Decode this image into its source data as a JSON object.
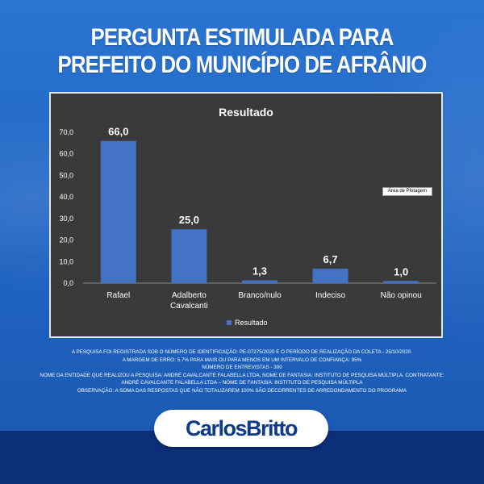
{
  "headline": {
    "line1": "PERGUNTA ESTIMULADA PARA",
    "line2": "PREFEITO DO  MUNICÍPIO DE AFRÂNIO"
  },
  "chart_data": {
    "type": "bar",
    "title": "Resultado",
    "categories": [
      "Rafael",
      "Adalberto Cavalcanti",
      "Branco/nulo",
      "Indeciso",
      "Não opinou"
    ],
    "category_lines": [
      [
        "Rafael"
      ],
      [
        "Adalberto",
        "Cavalcanti"
      ],
      [
        "Branco/nulo"
      ],
      [
        "Indeciso"
      ],
      [
        "Não opinou"
      ]
    ],
    "series": [
      {
        "name": "Resultado",
        "values": [
          66.0,
          25.0,
          1.3,
          6.7,
          1.0
        ]
      }
    ],
    "value_labels": [
      "66,0",
      "25,0",
      "1,3",
      "6,7",
      "1,0"
    ],
    "yticks": [
      "0,0",
      "10,0",
      "20,0",
      "30,0",
      "40,0",
      "50,0",
      "60,0",
      "70,0"
    ],
    "ylim": [
      0,
      70
    ],
    "grid": false,
    "legend_position": "bottom",
    "colors": {
      "bar": "#4472c4",
      "background": "#3a3a3a",
      "text": "#ffffff"
    },
    "annotation": "Área de Plotagem"
  },
  "footnote": [
    "A PESQUISA FOI REGISTRADA SOB O NÚMERO DE IDENTIFICAÇÃO: PE-07275/2020 E O PERÍODO DE REALIZAÇÃO DA COLETA - 25/10/2020.",
    "A MARGEM DE ERRO: 5,7% PARA MAIS OU PARA MENOS EM UM INTERVALO DE CONFIANÇA: 95%",
    "NÚMERO DE ENTREVISTAS - 300",
    "NOME DA ENTIDADE QUE REALIZOU A PESQUISA: ANDRÉ CAVALCANTE FALABELLA LTDA, NOME DE FANTASIA: INSTITUTO DE PESQUISA MÚLTIPLA. CONTRATANTE:",
    "ANDRÉ CAVALCANTE FALABELLA LTDA – NOME DE FANTASIA: INSTITUTO DE PESQUISA MÚLTIPLA",
    "OBSERVAÇÃO: A SOMA DAS RESPOSTAS QUE NÃO TOTALIZAREM 100% SÃO DECORRENTES DE ARREDONDAMENTO DO PROGRAMA"
  ],
  "logo": {
    "text": "CarlosBritto"
  }
}
